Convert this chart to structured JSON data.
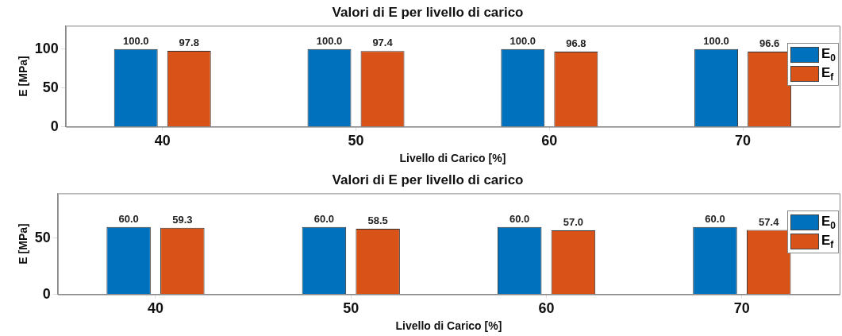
{
  "chart_data": [
    {
      "type": "bar",
      "title": "Valori di E per livello di carico",
      "xlabel": "Livello di Carico [%]",
      "ylabel": "E [MPa]",
      "categories": [
        "40",
        "50",
        "60",
        "70"
      ],
      "ylim": [
        0,
        130
      ],
      "yticks": [
        0,
        50,
        100
      ],
      "legend": "top right",
      "series": [
        {
          "name": "E$_{0}$",
          "color": "#0072bd",
          "values": [
            100.0,
            100.0,
            100.0,
            100.0
          ],
          "value_labels": [
            "100.0",
            "100.0",
            "100.0",
            "100.0"
          ]
        },
        {
          "name": "E$_{f}$",
          "color": "#d95319",
          "values": [
            97.8,
            97.4,
            96.8,
            96.6
          ],
          "value_labels": [
            "97.8",
            "97.4",
            "96.8",
            "96.6"
          ]
        }
      ]
    },
    {
      "type": "bar",
      "title": "Valori di E per livello di carico",
      "xlabel": "Livello di Carico [%]",
      "ylabel": "E [MPa]",
      "categories": [
        "40",
        "50",
        "60",
        "70"
      ],
      "ylim": [
        0,
        90
      ],
      "yticks": [
        0,
        50
      ],
      "legend": "top right",
      "series": [
        {
          "name": "E$_{0}$",
          "color": "#0072bd",
          "values": [
            60.0,
            60.0,
            60.0,
            60.0
          ],
          "value_labels": [
            "60.0",
            "60.0",
            "60.0",
            "60.0"
          ]
        },
        {
          "name": "E$_{f}$",
          "color": "#d95319",
          "values": [
            59.3,
            58.5,
            57.0,
            57.4
          ],
          "value_labels": [
            "59.3",
            "58.5",
            "57.0",
            "57.4"
          ]
        }
      ]
    }
  ]
}
